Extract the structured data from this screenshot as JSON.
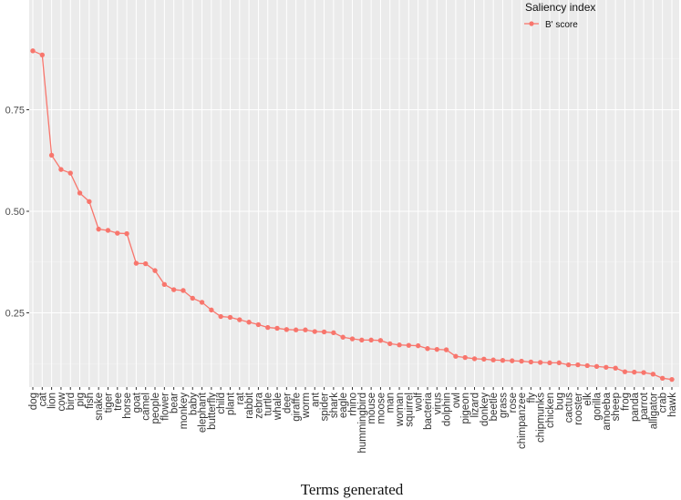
{
  "chart_data": {
    "type": "line",
    "xlabel": "Terms generated",
    "ylabel": "",
    "ylim": [
      0.085,
      0.92
    ],
    "yticks": [
      0.25,
      0.5,
      0.75
    ],
    "ytick_labels": [
      "0.25",
      "0.50",
      "0.75"
    ],
    "grid": true,
    "legend": {
      "title": "Saliency index",
      "placement": "top-right",
      "entries": [
        "B' score"
      ]
    },
    "categories": [
      "dog",
      "cat",
      "lion",
      "cow",
      "bird",
      "pig",
      "fish",
      "snake",
      "tiger",
      "tree",
      "horse",
      "goat",
      "camel",
      "people",
      "flower",
      "bear",
      "monkey",
      "baby",
      "elephant",
      "butterfly",
      "child",
      "plant",
      "rat",
      "rabbit",
      "zebra",
      "turtle",
      "whale",
      "deer",
      "giraffe",
      "worm",
      "ant",
      "spider",
      "shark",
      "eagle",
      "rhino",
      "hummingbird",
      "mouse",
      "moose",
      "man",
      "woman",
      "squirrel",
      "wolf",
      "bacteria",
      "virus",
      "dolphin",
      "owl",
      "pigeon",
      "lizard",
      "donkey",
      "beetle",
      "grass",
      "rose",
      "chimpanzee",
      "fly",
      "chipmunks",
      "chicken",
      "bug",
      "cactus",
      "rooster",
      "elk",
      "gorilla",
      "amoeba",
      "sheep",
      "frog",
      "panda",
      "parrot",
      "alligator",
      "crab",
      "hawk"
    ],
    "series": [
      {
        "name": "B' score",
        "color": "#F8766D",
        "values": [
          0.895,
          0.885,
          0.638,
          0.603,
          0.594,
          0.545,
          0.524,
          0.456,
          0.453,
          0.446,
          0.445,
          0.372,
          0.371,
          0.354,
          0.32,
          0.307,
          0.305,
          0.286,
          0.276,
          0.257,
          0.241,
          0.239,
          0.233,
          0.227,
          0.221,
          0.214,
          0.212,
          0.209,
          0.208,
          0.208,
          0.204,
          0.203,
          0.201,
          0.19,
          0.186,
          0.183,
          0.183,
          0.182,
          0.174,
          0.171,
          0.17,
          0.169,
          0.162,
          0.16,
          0.159,
          0.143,
          0.14,
          0.137,
          0.136,
          0.134,
          0.133,
          0.132,
          0.131,
          0.129,
          0.128,
          0.127,
          0.127,
          0.122,
          0.122,
          0.12,
          0.118,
          0.116,
          0.114,
          0.105,
          0.104,
          0.103,
          0.099,
          0.089,
          0.086
        ]
      }
    ]
  }
}
